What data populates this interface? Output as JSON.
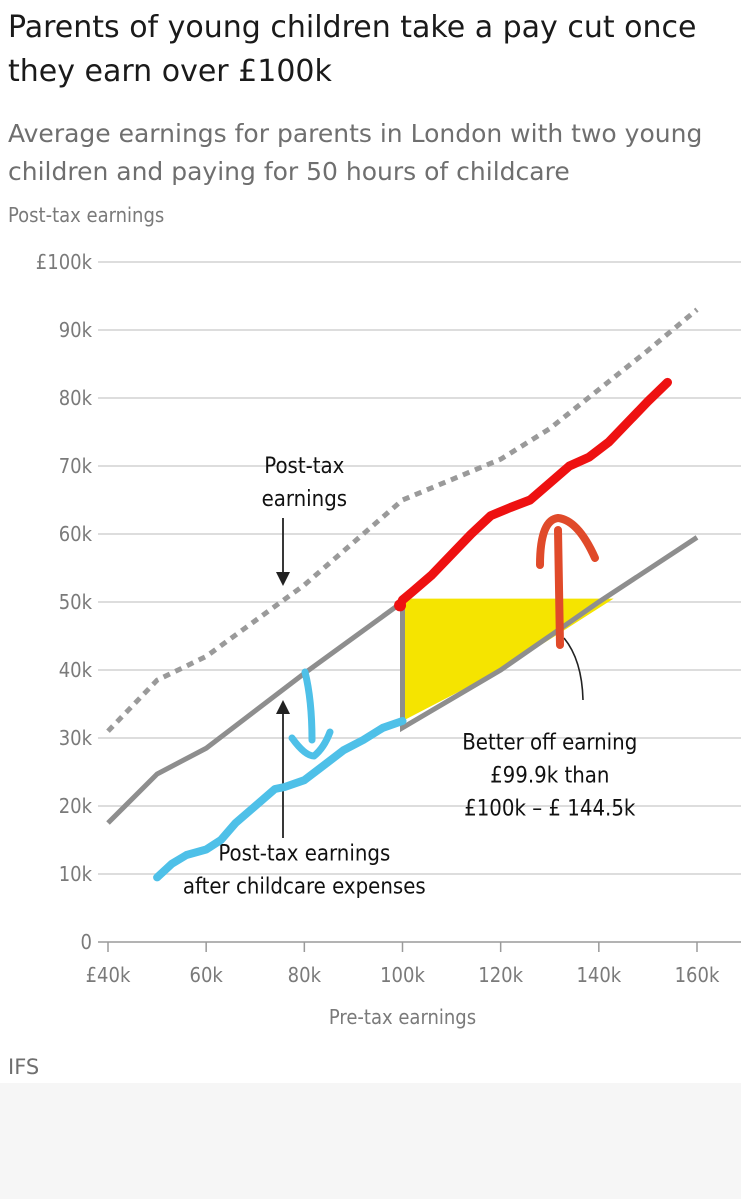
{
  "title": "Parents of young children take a pay cut once they earn over £100k",
  "subtitle": "Average earnings for parents in London with two young children and paying for 50 hours of childcare",
  "source": "IFS",
  "chart_data": {
    "type": "line",
    "ylabel": "Post-tax earnings",
    "xlabel": "Pre-tax earnings",
    "xlim": [
      40,
      160
    ],
    "ylim": [
      0,
      100
    ],
    "x_ticks": [
      {
        "value": 40,
        "label": "£40k"
      },
      {
        "value": 60,
        "label": "60k"
      },
      {
        "value": 80,
        "label": "80k"
      },
      {
        "value": 100,
        "label": "100k"
      },
      {
        "value": 120,
        "label": "120k"
      },
      {
        "value": 140,
        "label": "140k"
      },
      {
        "value": 160,
        "label": "160k"
      }
    ],
    "y_ticks": [
      {
        "value": 0,
        "label": "0"
      },
      {
        "value": 10,
        "label": "10k"
      },
      {
        "value": 20,
        "label": "20k"
      },
      {
        "value": 30,
        "label": "30k"
      },
      {
        "value": 40,
        "label": "40k"
      },
      {
        "value": 50,
        "label": "50k"
      },
      {
        "value": 60,
        "label": "60k"
      },
      {
        "value": 70,
        "label": "70k"
      },
      {
        "value": 80,
        "label": "80k"
      },
      {
        "value": 90,
        "label": "90k"
      },
      {
        "value": 100,
        "label": "£100k"
      }
    ],
    "grid": true,
    "series": [
      {
        "style": "dotted",
        "color": "#9a9a9a",
        "points": [
          [
            40,
            31
          ],
          [
            50,
            38.5
          ],
          [
            60,
            42
          ],
          [
            80,
            52.5
          ],
          [
            100,
            65
          ],
          [
            120,
            71
          ],
          [
            130,
            75.5
          ],
          [
            150,
            87
          ],
          [
            160,
            93
          ]
        ]
      },
      {
        "style": "solid",
        "color": "#8e8e8e",
        "points": [
          [
            40,
            17.5
          ],
          [
            50,
            24.7
          ],
          [
            60,
            28.5
          ],
          [
            80,
            39.5
          ],
          [
            100,
            50
          ],
          [
            100,
            31.5
          ],
          [
            120,
            40
          ],
          [
            130,
            45
          ],
          [
            140,
            50
          ],
          [
            160,
            59.5
          ]
        ]
      }
    ],
    "highlight": {
      "color": "#f5e400",
      "points": [
        [
          100,
          50.5
        ],
        [
          143,
          50.5
        ],
        [
          130,
          44.5
        ],
        [
          120,
          40
        ],
        [
          100,
          32.5
        ]
      ]
    },
    "annotations": [
      {
        "text": [
          "Post-tax",
          "earnings"
        ],
        "x": 80,
        "y": 69
      },
      {
        "text": [
          "Post-tax earnings",
          "after childcare expenses"
        ],
        "x": 80,
        "y": 12
      },
      {
        "text": [
          "Better off earning",
          "£99.9k than",
          "£100k – £ 144.5k"
        ],
        "x": 130,
        "y": 28.3
      }
    ],
    "handdrawn": {
      "red": {
        "color": "#ee1111",
        "points": [
          [
            99.5,
            49.5
          ],
          [
            100,
            50.3
          ],
          [
            102,
            51.5
          ],
          [
            106,
            54
          ],
          [
            110,
            57
          ],
          [
            114,
            60
          ],
          [
            118,
            62.7
          ],
          [
            122,
            63.9
          ],
          [
            126,
            65
          ],
          [
            130,
            67.5
          ],
          [
            134,
            70
          ],
          [
            138,
            71.3
          ],
          [
            142,
            73.5
          ],
          [
            146,
            76.5
          ],
          [
            150,
            79.5
          ],
          [
            154,
            82.3
          ]
        ]
      },
      "blue": {
        "color": "#4ec0e8",
        "points": [
          [
            50,
            9.5
          ],
          [
            53,
            11.5
          ],
          [
            56,
            12.8
          ],
          [
            60,
            13.6
          ],
          [
            63,
            15
          ],
          [
            66,
            17.5
          ],
          [
            70,
            20
          ],
          [
            74,
            22.5
          ],
          [
            76,
            22.8
          ],
          [
            80,
            23.8
          ],
          [
            84,
            26
          ],
          [
            88,
            28.2
          ],
          [
            92,
            29.7
          ],
          [
            96,
            31.5
          ],
          [
            100,
            32.5
          ]
        ]
      }
    }
  }
}
